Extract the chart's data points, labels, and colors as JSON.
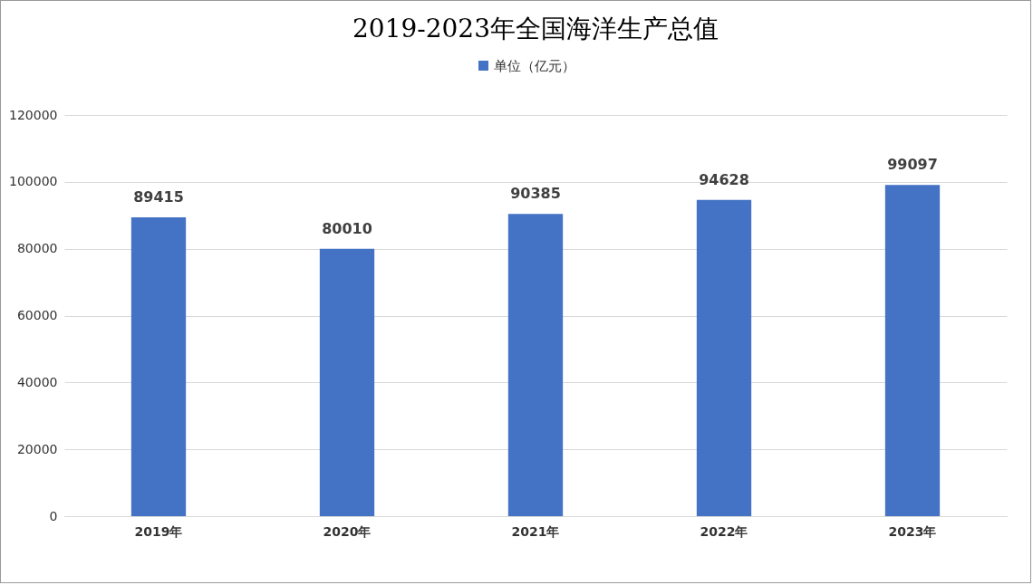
{
  "chart_data": {
    "type": "bar",
    "title": "2019-2023年全国海洋生产总值",
    "categories": [
      "2019年",
      "2020年",
      "2021年",
      "2022年",
      "2023年"
    ],
    "series": [
      {
        "name": "单位（亿元）",
        "color": "#4472c4",
        "values": [
          89415,
          80010,
          90385,
          94628,
          99097
        ]
      }
    ],
    "ylim": [
      0,
      120000
    ],
    "yticks": [
      0,
      20000,
      40000,
      60000,
      80000,
      100000,
      120000
    ],
    "grid": "y",
    "legend": "top",
    "data_labels": true
  }
}
